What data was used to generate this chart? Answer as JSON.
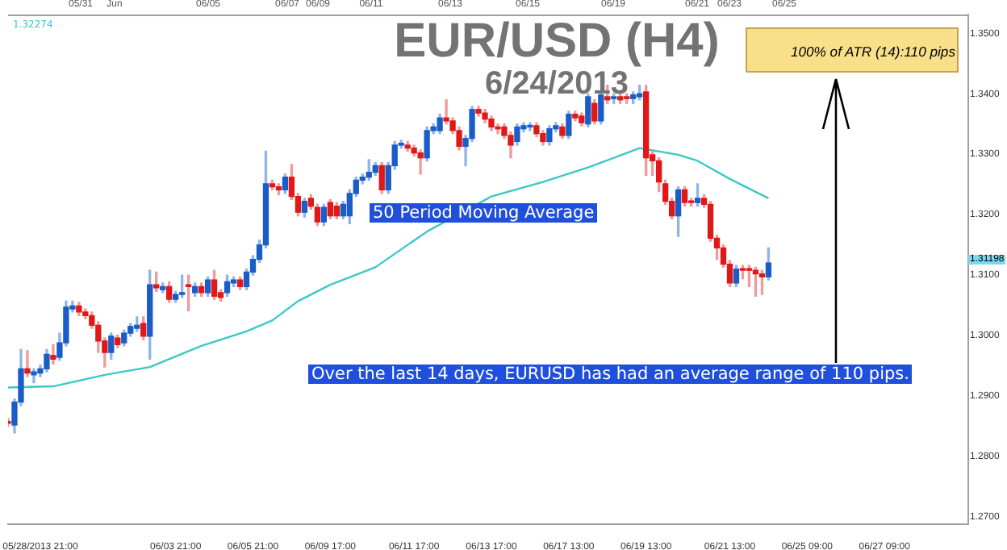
{
  "chart_data": {
    "type": "candlestick",
    "title": "EUR/USD (H4)",
    "subtitle": "6/24/2013",
    "categories": [
      null,
      null,
      null,
      null,
      null,
      "05/28/2013 21:00",
      null,
      null,
      null,
      null,
      null,
      null,
      null,
      null,
      null,
      null,
      null,
      null,
      null,
      null,
      null,
      null,
      null,
      null,
      null,
      null,
      "06/03 21:00",
      null,
      null,
      null,
      null,
      null,
      null,
      null,
      null,
      null,
      null,
      null,
      "06/05 21:00",
      null,
      null,
      null,
      null,
      null,
      null,
      null,
      null,
      null,
      null,
      null,
      "06/09 17:00",
      null,
      null,
      null,
      null,
      null,
      null,
      null,
      null,
      null,
      null,
      null,
      null,
      "06/11 17:00",
      null,
      null,
      null,
      null,
      null,
      null,
      null,
      null,
      null,
      null,
      null,
      "06/13 17:00",
      null,
      null,
      null,
      null,
      null,
      null,
      null,
      null,
      null,
      null,
      null,
      "06/17 13:00",
      null,
      null,
      null,
      null,
      null,
      null,
      null,
      null,
      null,
      null,
      null,
      "06/19 13:00",
      null,
      null,
      null,
      null,
      null,
      null,
      null,
      null,
      null,
      null,
      null,
      null,
      "06/21 13:00",
      null,
      null,
      null,
      null,
      null,
      null,
      null,
      null,
      null,
      null,
      null,
      "06/25 09:00",
      null,
      null,
      null,
      null,
      null,
      null,
      null,
      null,
      null,
      null,
      null,
      "06/27 09:00",
      null,
      null,
      null,
      null,
      null,
      null,
      null,
      null,
      null,
      null,
      null,
      null,
      null
    ],
    "ohlc": [
      [
        1.2858,
        1.2863,
        1.285,
        1.2855
      ],
      [
        1.2852,
        1.2895,
        1.2839,
        1.289
      ],
      [
        1.289,
        1.2977,
        1.2884,
        1.2945
      ],
      [
        1.2945,
        1.2975,
        1.2932,
        1.2938
      ],
      [
        1.2935,
        1.2945,
        1.2922,
        1.294
      ],
      [
        1.2938,
        1.2951,
        1.2932,
        1.2945
      ],
      [
        1.2945,
        1.2977,
        1.294,
        1.2969
      ],
      [
        1.2967,
        1.2985,
        1.2953,
        1.2961
      ],
      [
        1.2964,
        1.3004,
        1.2959,
        1.2988
      ],
      [
        1.2988,
        1.3057,
        1.2983,
        1.3047
      ],
      [
        1.3044,
        1.3057,
        1.3039,
        1.3049
      ],
      [
        1.3049,
        1.3055,
        1.3033,
        1.3039
      ],
      [
        1.3039,
        1.3044,
        1.3028,
        1.3033
      ],
      [
        1.3033,
        1.3039,
        1.3012,
        1.3017
      ],
      [
        1.3017,
        1.3023,
        1.2972,
        1.2991
      ],
      [
        1.2991,
        1.2996,
        1.2948,
        1.2972
      ],
      [
        1.2972,
        1.3004,
        1.2961,
        1.2999
      ],
      [
        1.2996,
        1.3001,
        1.298,
        1.2985
      ],
      [
        1.2988,
        1.3009,
        1.2983,
        1.3004
      ],
      [
        1.3004,
        1.302,
        1.2999,
        1.3015
      ],
      [
        1.3012,
        1.3031,
        1.3007,
        1.3017
      ],
      [
        1.302,
        1.3031,
        1.2993,
        1.2999
      ],
      [
        1.2999,
        1.3108,
        1.2961,
        1.3084
      ],
      [
        1.3084,
        1.3105,
        1.3073,
        1.3079
      ],
      [
        1.3076,
        1.3087,
        1.3071,
        1.3081
      ],
      [
        1.3081,
        1.3089,
        1.3055,
        1.306
      ],
      [
        1.306,
        1.3073,
        1.3055,
        1.3068
      ],
      [
        1.3068,
        1.31,
        1.3063,
        1.3071
      ],
      [
        1.3084,
        1.31,
        1.3041,
        1.3081
      ],
      [
        1.3071,
        1.3087,
        1.3065,
        1.3081
      ],
      [
        1.3081,
        1.3087,
        1.3065,
        1.3071
      ],
      [
        1.3071,
        1.3097,
        1.3065,
        1.3092
      ],
      [
        1.3092,
        1.3108,
        1.306,
        1.3065
      ],
      [
        1.3071,
        1.3076,
        1.3057,
        1.3063
      ],
      [
        1.3071,
        1.31,
        1.3065,
        1.3089
      ],
      [
        1.3087,
        1.3097,
        1.3081,
        1.3092
      ],
      [
        1.3092,
        1.3097,
        1.3076,
        1.3081
      ],
      [
        1.3081,
        1.311,
        1.3076,
        1.3105
      ],
      [
        1.3105,
        1.3132,
        1.31,
        1.3126
      ],
      [
        1.3126,
        1.3158,
        1.3121,
        1.315
      ],
      [
        1.315,
        1.3305,
        1.3145,
        1.3251
      ],
      [
        1.3251,
        1.3257,
        1.3241,
        1.3246
      ],
      [
        1.3246,
        1.3251,
        1.3233,
        1.3241
      ],
      [
        1.3241,
        1.3267,
        1.3235,
        1.3262
      ],
      [
        1.3262,
        1.3283,
        1.3225,
        1.323
      ],
      [
        1.323,
        1.3235,
        1.3198,
        1.3204
      ],
      [
        1.3204,
        1.3227,
        1.3196,
        1.3222
      ],
      [
        1.3227,
        1.3233,
        1.3209,
        1.3214
      ],
      [
        1.3212,
        1.3217,
        1.3182,
        1.3188
      ],
      [
        1.3188,
        1.3217,
        1.3182,
        1.3212
      ],
      [
        1.322,
        1.3225,
        1.3193,
        1.3198
      ],
      [
        1.3214,
        1.322,
        1.3193,
        1.3198
      ],
      [
        1.3198,
        1.3222,
        1.3193,
        1.3217
      ],
      [
        1.3198,
        1.3241,
        1.3185,
        1.3235
      ],
      [
        1.3235,
        1.3262,
        1.323,
        1.3257
      ],
      [
        1.3257,
        1.3267,
        1.3251,
        1.3262
      ],
      [
        1.3262,
        1.3291,
        1.3257,
        1.327
      ],
      [
        1.327,
        1.3286,
        1.3265,
        1.3281
      ],
      [
        1.3281,
        1.3286,
        1.3235,
        1.3241
      ],
      [
        1.3241,
        1.3286,
        1.3235,
        1.3281
      ],
      [
        1.3281,
        1.3321,
        1.3275,
        1.3315
      ],
      [
        1.3315,
        1.3323,
        1.331,
        1.3318
      ],
      [
        1.3315,
        1.3321,
        1.3305,
        1.331
      ],
      [
        1.331,
        1.3315,
        1.3297,
        1.3302
      ],
      [
        1.3302,
        1.3307,
        1.3267,
        1.3294
      ],
      [
        1.3294,
        1.3345,
        1.3289,
        1.3339
      ],
      [
        1.3339,
        1.335,
        1.3334,
        1.3345
      ],
      [
        1.3339,
        1.3366,
        1.3334,
        1.336
      ],
      [
        1.336,
        1.339,
        1.335,
        1.3355
      ],
      [
        1.3355,
        1.336,
        1.3334,
        1.3339
      ],
      [
        1.3339,
        1.3345,
        1.3307,
        1.3313
      ],
      [
        1.3313,
        1.3331,
        1.3281,
        1.3326
      ],
      [
        1.3326,
        1.3379,
        1.3321,
        1.3374
      ],
      [
        1.3374,
        1.3379,
        1.3363,
        1.3368
      ],
      [
        1.3368,
        1.3374,
        1.3352,
        1.3358
      ],
      [
        1.3358,
        1.3363,
        1.3339,
        1.3345
      ],
      [
        1.3345,
        1.335,
        1.3334,
        1.3342
      ],
      [
        1.3345,
        1.335,
        1.3326,
        1.3331
      ],
      [
        1.3331,
        1.3337,
        1.3294,
        1.3315
      ],
      [
        1.3321,
        1.335,
        1.3315,
        1.3345
      ],
      [
        1.3342,
        1.3352,
        1.3337,
        1.3347
      ],
      [
        1.3345,
        1.3352,
        1.3339,
        1.3347
      ],
      [
        1.3347,
        1.3352,
        1.3329,
        1.3334
      ],
      [
        1.3334,
        1.3339,
        1.3315,
        1.3321
      ],
      [
        1.3321,
        1.3347,
        1.3315,
        1.3342
      ],
      [
        1.3342,
        1.3352,
        1.3337,
        1.3347
      ],
      [
        1.3345,
        1.335,
        1.3326,
        1.3331
      ],
      [
        1.3331,
        1.3371,
        1.3326,
        1.3366
      ],
      [
        1.3366,
        1.3371,
        1.3355,
        1.336
      ],
      [
        1.3363,
        1.3368,
        1.3347,
        1.3352
      ],
      [
        1.335,
        1.34,
        1.3345,
        1.3395
      ],
      [
        1.3384,
        1.339,
        1.335,
        1.3355
      ],
      [
        1.3355,
        1.3403,
        1.335,
        1.3398
      ],
      [
        1.3395,
        1.3414,
        1.3384,
        1.339
      ],
      [
        1.3392,
        1.34,
        1.3384,
        1.3395
      ],
      [
        1.3395,
        1.34,
        1.3384,
        1.339
      ],
      [
        1.3395,
        1.34,
        1.3384,
        1.3392
      ],
      [
        1.3392,
        1.3403,
        1.3384,
        1.3398
      ],
      [
        1.3395,
        1.3414,
        1.339,
        1.34
      ],
      [
        1.3403,
        1.3414,
        1.3265,
        1.3294
      ],
      [
        1.3299,
        1.3305,
        1.3265,
        1.3289
      ],
      [
        1.3289,
        1.3294,
        1.3238,
        1.3254
      ],
      [
        1.3251,
        1.3257,
        1.3217,
        1.3222
      ],
      [
        1.3222,
        1.3227,
        1.3193,
        1.3198
      ],
      [
        1.3198,
        1.3246,
        1.3164,
        1.3241
      ],
      [
        1.3241,
        1.3246,
        1.3214,
        1.322
      ],
      [
        1.3222,
        1.3227,
        1.3214,
        1.322
      ],
      [
        1.322,
        1.3251,
        1.3214,
        1.3227
      ],
      [
        1.3227,
        1.3233,
        1.3212,
        1.3217
      ],
      [
        1.3217,
        1.3222,
        1.3156,
        1.3161
      ],
      [
        1.3161,
        1.3166,
        1.3126,
        1.3145
      ],
      [
        1.3145,
        1.315,
        1.3113,
        1.3118
      ],
      [
        1.3118,
        1.3124,
        1.3081,
        1.3087
      ],
      [
        1.3087,
        1.3116,
        1.3081,
        1.311
      ],
      [
        1.311,
        1.3116,
        1.3094,
        1.3108
      ],
      [
        1.311,
        1.3116,
        1.3081,
        1.3108
      ],
      [
        1.3108,
        1.3113,
        1.3065,
        1.3102
      ],
      [
        1.3102,
        1.3108,
        1.3068,
        1.3097
      ],
      [
        1.3097,
        1.3145,
        1.3092,
        1.312
      ],
      null,
      null,
      null,
      null,
      null,
      null,
      null,
      null,
      null,
      null,
      null,
      null,
      null,
      null,
      null,
      null,
      null,
      null,
      null,
      null,
      null,
      null,
      null,
      null,
      null,
      null,
      null,
      null,
      null,
      null,
      null
    ],
    "series": [
      {
        "type": "line",
        "color": "#3cc8c8",
        "values": [
          1.2914,
          null,
          null,
          null,
          null,
          null,
          null,
          1.2916,
          null,
          null,
          null,
          null,
          null,
          null,
          null,
          1.2935,
          null,
          null,
          null,
          null,
          null,
          null,
          1.2948,
          null,
          null,
          null,
          null,
          null,
          null,
          null,
          1.2983,
          null,
          null,
          null,
          null,
          null,
          null,
          1.3007,
          null,
          null,
          null,
          1.3025,
          null,
          null,
          null,
          1.3057,
          null,
          null,
          null,
          null,
          1.3084,
          null,
          null,
          null,
          null,
          null,
          null,
          1.3113,
          null,
          null,
          null,
          null,
          null,
          null,
          null,
          1.3172,
          null,
          null,
          null,
          null,
          null,
          null,
          null,
          null,
          null,
          1.323,
          null,
          null,
          null,
          null,
          null,
          null,
          null,
          1.3254,
          null,
          null,
          null,
          null,
          null,
          null,
          1.3278,
          null,
          null,
          null,
          null,
          null,
          null,
          null,
          1.331,
          null,
          null,
          null,
          null,
          null,
          1.3299,
          null,
          null,
          1.3289,
          null,
          null,
          null,
          null,
          1.3259,
          null,
          null,
          null,
          null,
          null,
          1.3227,
          null,
          null,
          null,
          null,
          null,
          null,
          null,
          null,
          null,
          null,
          null,
          null,
          null,
          null,
          null,
          null,
          null,
          null,
          null,
          null,
          null,
          null,
          null,
          null,
          null,
          null,
          null,
          null,
          null,
          null,
          null
        ]
      }
    ],
    "ylim": [
      1.2688,
      1.3531
    ],
    "yticks": [
      {
        "value": 1.27,
        "label": "1.2700"
      },
      {
        "value": 1.28,
        "label": "1.2800"
      },
      {
        "value": 1.29,
        "label": "1.2900"
      },
      {
        "value": 1.3,
        "label": "1.3000"
      },
      {
        "value": 1.31,
        "label": "1.3100"
      },
      {
        "value": 1.32,
        "label": "1.3200"
      },
      {
        "value": 1.33,
        "label": "1.3300"
      },
      {
        "value": 1.34,
        "label": "1.3400"
      },
      {
        "value": 1.35,
        "label": "1.3500"
      }
    ],
    "annotations": [
      "50 Period Moving Average",
      "Over the last 14 days, EURUSD has had an average range of 110 pips.",
      "100% of ATR (14):110 pips",
      "1.32274",
      "1.31198",
      "05/31",
      "Jun",
      "06/05",
      "06/07",
      "06/09",
      "06/11",
      "06/13",
      "06/15",
      "06/19",
      "06/21",
      "06/23",
      "06/25"
    ]
  }
}
